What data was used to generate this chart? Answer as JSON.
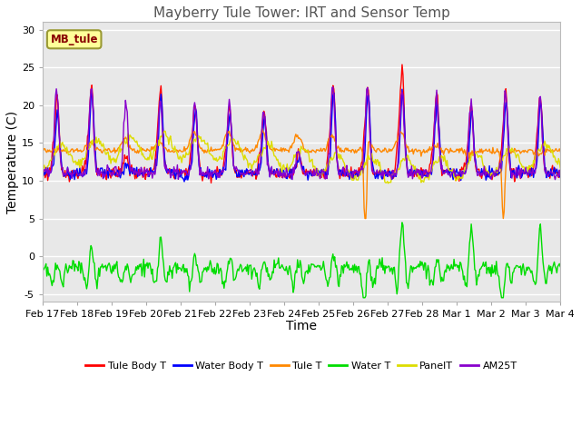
{
  "title": "Mayberry Tule Tower: IRT and Sensor Temp",
  "xlabel": "Time",
  "ylabel": "Temperature (C)",
  "ylim": [
    -6,
    31
  ],
  "yticks": [
    -5,
    0,
    5,
    10,
    15,
    20,
    25,
    30
  ],
  "x_tick_labels": [
    "Feb 17",
    "Feb 18",
    "Feb 19",
    "Feb 20",
    "Feb 21",
    "Feb 22",
    "Feb 23",
    "Feb 24",
    "Feb 25",
    "Feb 26",
    "Feb 27",
    "Feb 28",
    "Mar 1",
    "Mar 2",
    "Mar 3",
    "Mar 4"
  ],
  "series_colors": {
    "Tule Body T": "#ff0000",
    "Water Body T": "#0000ff",
    "Tule T": "#ff8800",
    "Water T": "#00dd00",
    "PanelT": "#dddd00",
    "AM25T": "#8800cc"
  },
  "plot_bg": "#e8e8e8",
  "fig_bg": "#ffffff",
  "box_face": "#ffff99",
  "box_edge": "#999933",
  "box_text": "MB_tule",
  "box_text_color": "#880000",
  "title_color": "#555555",
  "grid_color": "#ffffff",
  "n_points": 600
}
